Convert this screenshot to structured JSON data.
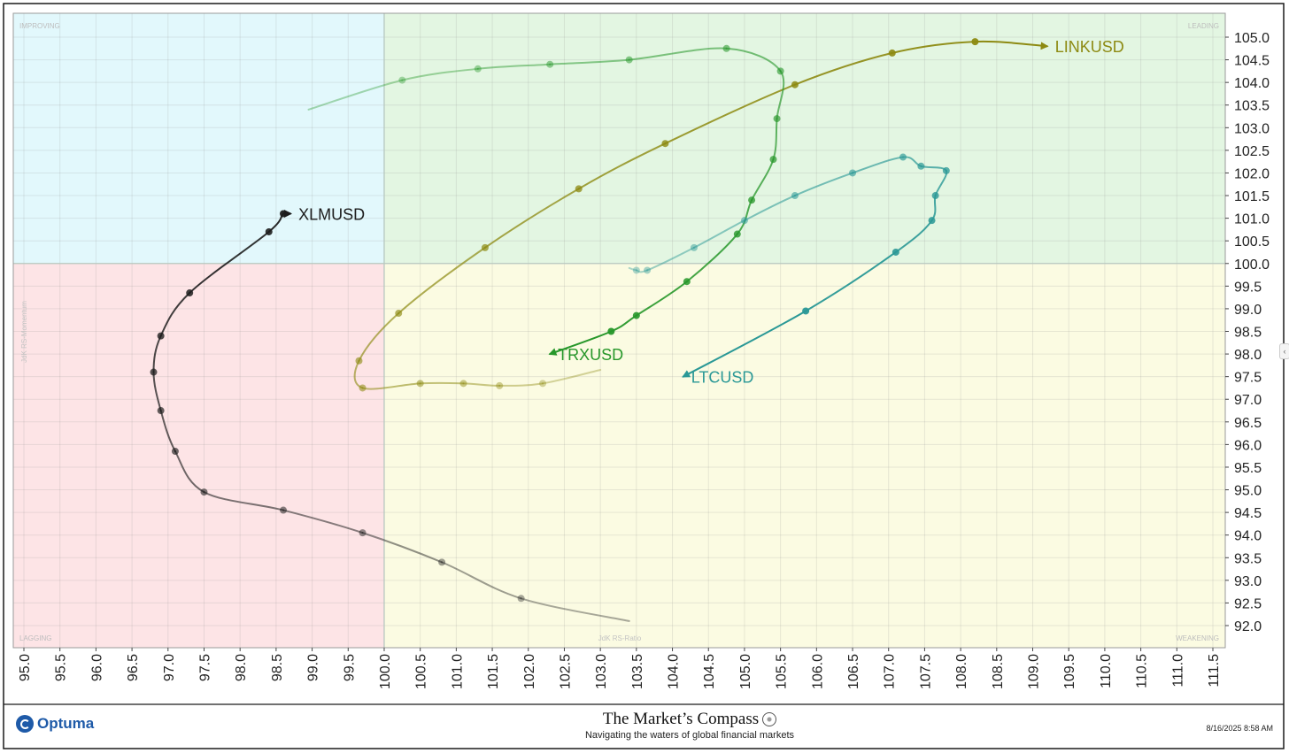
{
  "chart_data": {
    "type": "line",
    "title": "",
    "xlabel": "JdK RS-Ratio",
    "ylabel": "JdK RS-Momentum",
    "xlim": [
      95.0,
      111.5
    ],
    "ylim": [
      92.0,
      105.0
    ],
    "x_ticks": [
      "95.0",
      "95.5",
      "96.0",
      "96.5",
      "97.0",
      "97.5",
      "98.0",
      "98.5",
      "99.0",
      "99.5",
      "100.0",
      "100.5",
      "101.0",
      "101.5",
      "102.0",
      "102.5",
      "103.0",
      "103.5",
      "104.0",
      "104.5",
      "105.0",
      "105.5",
      "106.0",
      "106.5",
      "107.0",
      "107.5",
      "108.0",
      "108.5",
      "109.0",
      "109.5",
      "110.0",
      "110.5",
      "111.0",
      "111.5"
    ],
    "y_ticks": [
      "105.0",
      "104.5",
      "104.0",
      "103.5",
      "103.0",
      "102.5",
      "102.0",
      "101.5",
      "101.0",
      "100.5",
      "100.0",
      "99.5",
      "99.0",
      "98.5",
      "98.0",
      "97.5",
      "97.0",
      "96.5",
      "96.0",
      "95.5",
      "95.0",
      "94.5",
      "94.0",
      "93.5",
      "93.0",
      "92.5",
      "92.0"
    ],
    "quadrants": [
      {
        "name": "IMPROVING",
        "color": "#e2f8fc"
      },
      {
        "name": "LEADING",
        "color": "#e3f6e2"
      },
      {
        "name": "LAGGING",
        "color": "#fde4e6"
      },
      {
        "name": "WEAKENING",
        "color": "#fbfbe2"
      }
    ],
    "grid": true,
    "series": [
      {
        "name": "LINKUSD",
        "color": "#8d8a12",
        "x": [
          103.0,
          102.2,
          101.6,
          101.1,
          100.5,
          99.7,
          99.65,
          100.2,
          101.4,
          102.7,
          103.9,
          105.7,
          107.05,
          108.2,
          109.2
        ],
        "y": [
          97.65,
          97.35,
          97.3,
          97.35,
          97.35,
          97.25,
          97.85,
          98.9,
          100.35,
          101.65,
          102.65,
          103.95,
          104.65,
          104.9,
          104.8
        ]
      },
      {
        "name": "TRXUSD",
        "color": "#27972a",
        "x": [
          98.95,
          100.25,
          101.3,
          102.3,
          103.4,
          104.75,
          105.5,
          105.45,
          105.4,
          105.1,
          104.9,
          104.2,
          103.5,
          103.15,
          102.3
        ],
        "y": [
          103.4,
          104.05,
          104.3,
          104.4,
          104.5,
          104.75,
          104.25,
          103.2,
          102.3,
          101.4,
          100.65,
          99.6,
          98.85,
          98.5,
          98.0
        ]
      },
      {
        "name": "LTCUSD",
        "color": "#2a9896",
        "x": [
          103.4,
          103.5,
          103.65,
          104.3,
          105.0,
          105.7,
          106.5,
          107.2,
          107.45,
          107.8,
          107.65,
          107.6,
          107.1,
          105.85,
          104.15
        ],
        "y": [
          99.9,
          99.85,
          99.85,
          100.35,
          100.95,
          101.5,
          102.0,
          102.35,
          102.15,
          102.05,
          101.5,
          100.95,
          100.25,
          98.95,
          97.5
        ]
      },
      {
        "name": "XLMUSD",
        "color": "#1c1c1c",
        "x": [
          103.4,
          101.9,
          100.8,
          99.7,
          98.6,
          97.5,
          97.1,
          96.9,
          96.8,
          96.9,
          97.3,
          98.4,
          98.6,
          98.7
        ],
        "y": [
          92.1,
          92.6,
          93.4,
          94.05,
          94.55,
          94.95,
          95.85,
          96.75,
          97.6,
          98.4,
          99.35,
          100.7,
          101.1,
          101.1
        ]
      }
    ]
  },
  "footer": {
    "logo_text": "Optuma",
    "brand_title": "The Market’s Compass",
    "brand_subtitle": "Navigating the waters of global financial markets",
    "timestamp": "8/16/2025 8:58 AM"
  }
}
